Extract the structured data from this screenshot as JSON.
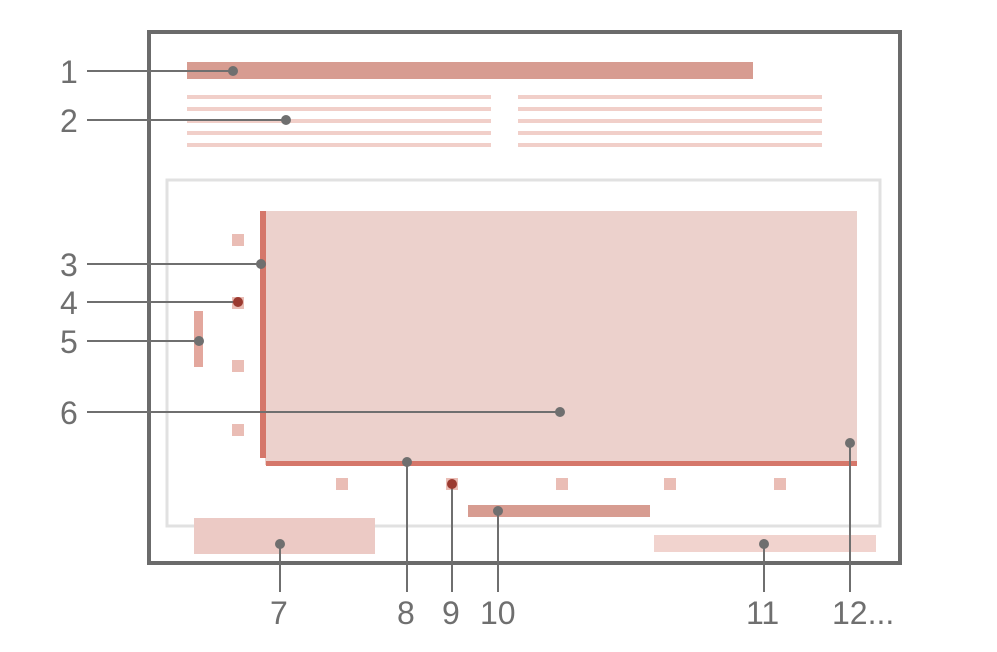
{
  "colors": {
    "frame": "#6b6b6b",
    "inner_frame": "#e1e1e1",
    "title_bar": "#d79c91",
    "text_lines": "#f1cfc9",
    "plot_area": "#ecd1cc",
    "axis": "#d5776a",
    "tick": "#eabdb5",
    "highlight_tick": "#c05a4d",
    "bottom_box": "#eccac5",
    "leader_line": "#6f6f6f",
    "dot": "#6f6f6f"
  },
  "callouts": {
    "c1": "1",
    "c2": "2",
    "c3": "3",
    "c4": "4",
    "c5": "5",
    "c6": "6",
    "c7": "7",
    "c8": "8",
    "c9": "9",
    "c10": "10",
    "c11": "11",
    "c12": "12..."
  }
}
